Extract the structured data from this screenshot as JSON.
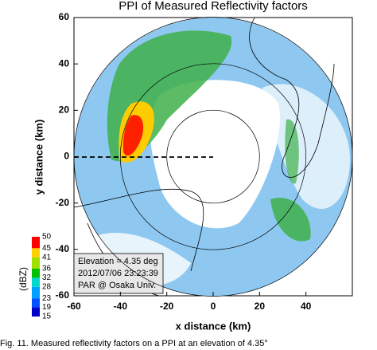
{
  "chart_data": {
    "type": "ppi",
    "title": "PPI of Measured Reflectivity factors",
    "xlabel": "x distance (km)",
    "ylabel": "y distance (km)",
    "xlim": [
      -60,
      60
    ],
    "ylim": [
      -60,
      60
    ],
    "xticks": [
      -60,
      -40,
      -20,
      0,
      20,
      40
    ],
    "yticks": [
      -60,
      -40,
      -20,
      0,
      20,
      40,
      60
    ],
    "range_rings": [
      20,
      40,
      60
    ],
    "colorbar": {
      "label": "(dBZ)",
      "ticks": [
        15,
        19,
        23,
        28,
        32,
        36,
        41,
        45,
        50
      ],
      "colors": [
        "#0000c8",
        "#0050ff",
        "#00a0ff",
        "#00d8d0",
        "#00c000",
        "#a0e000",
        "#ffd000",
        "#ff0000"
      ]
    },
    "annotation": [
      "Elevation = 4.35 deg",
      "2012/07/06 23:23:39",
      "PAR @ Osaka Univ."
    ],
    "caption": "Fig. 11.   Measured reflectivity factors on a PPI at an elevation of 4.35°"
  }
}
